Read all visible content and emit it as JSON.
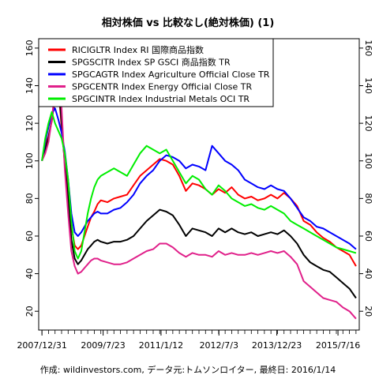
{
  "chart_data": {
    "type": "line",
    "title": "相対株価 vs 比較なし(絶対株価) (1)",
    "caption": "作成: wildinvestors.com, データ元:トムソンロイター, 最終日: 2016/1/14",
    "x_tick_labels": [
      "2007/12/31",
      "2009/7/23",
      "2011/1/12",
      "2012/7/3",
      "2013/12/23",
      "2015/7/16"
    ],
    "x_tick_months": [
      0,
      18.7,
      36.4,
      54.1,
      71.8,
      90.5
    ],
    "x_range_months": [
      -1,
      97
    ],
    "y_ticks": [
      20,
      40,
      60,
      80,
      100,
      120,
      140,
      160
    ],
    "ylim": [
      10,
      165
    ],
    "grid": false,
    "legend_position": "top-left",
    "series": [
      {
        "name": "RICIGLTR Index RI 国際商品指数",
        "color": "#ff0000",
        "x": [
          0,
          1,
          2,
          3,
          4,
          5,
          6,
          7,
          8,
          9,
          10,
          11,
          12,
          13,
          14,
          15,
          16,
          17,
          18,
          20,
          22,
          24,
          26,
          28,
          30,
          32,
          34,
          36,
          38,
          40,
          42,
          44,
          46,
          48,
          50,
          52,
          54,
          56,
          58,
          60,
          62,
          64,
          66,
          68,
          70,
          72,
          74,
          76,
          78,
          80,
          82,
          84,
          86,
          88,
          90,
          92,
          94,
          96
        ],
        "values": [
          100,
          108,
          113,
          121,
          134,
          140,
          118,
          100,
          82,
          65,
          55,
          53,
          55,
          60,
          65,
          70,
          73,
          77,
          79,
          78,
          80,
          81,
          82,
          87,
          92,
          95,
          98,
          101,
          100,
          98,
          92,
          84,
          88,
          87,
          85,
          82,
          85,
          83,
          86,
          82,
          80,
          81,
          79,
          80,
          82,
          80,
          83,
          80,
          76,
          68,
          66,
          62,
          59,
          57,
          54,
          52,
          50,
          44
        ]
      },
      {
        "name": "SPGSCITR Index SP GSCI 商品指数 TR",
        "color": "#000000",
        "x": [
          0,
          1,
          2,
          3,
          4,
          5,
          6,
          7,
          8,
          9,
          10,
          11,
          12,
          13,
          14,
          15,
          16,
          17,
          18,
          20,
          22,
          24,
          26,
          28,
          30,
          32,
          34,
          36,
          38,
          40,
          42,
          44,
          46,
          48,
          50,
          52,
          54,
          56,
          58,
          60,
          62,
          64,
          66,
          68,
          70,
          72,
          74,
          76,
          78,
          80,
          82,
          84,
          86,
          88,
          90,
          92,
          94,
          96
        ],
        "values": [
          100,
          106,
          112,
          122,
          135,
          142,
          120,
          98,
          80,
          58,
          48,
          45,
          47,
          50,
          53,
          55,
          57,
          58,
          57,
          56,
          57,
          57,
          58,
          60,
          64,
          68,
          71,
          74,
          73,
          71,
          66,
          60,
          64,
          63,
          62,
          60,
          64,
          62,
          64,
          62,
          61,
          62,
          60,
          61,
          62,
          61,
          63,
          60,
          56,
          50,
          46,
          44,
          42,
          41,
          38,
          35,
          32,
          27
        ]
      },
      {
        "name": "SPGCAGTR Index Agriculture Official Close TR",
        "color": "#0000ff",
        "x": [
          0,
          1,
          2,
          3,
          4,
          5,
          6,
          7,
          8,
          9,
          10,
          11,
          12,
          13,
          14,
          15,
          16,
          17,
          18,
          20,
          22,
          24,
          26,
          28,
          30,
          32,
          34,
          36,
          38,
          40,
          42,
          44,
          46,
          48,
          50,
          52,
          54,
          56,
          58,
          60,
          62,
          64,
          66,
          68,
          70,
          72,
          74,
          76,
          78,
          80,
          82,
          84,
          86,
          88,
          90,
          92,
          94,
          96
        ],
        "values": [
          100,
          110,
          118,
          125,
          128,
          122,
          115,
          105,
          90,
          72,
          62,
          60,
          62,
          65,
          68,
          70,
          72,
          73,
          72,
          72,
          74,
          75,
          78,
          82,
          88,
          92,
          95,
          100,
          103,
          102,
          100,
          96,
          98,
          97,
          95,
          108,
          104,
          100,
          98,
          95,
          90,
          88,
          86,
          85,
          87,
          85,
          84,
          80,
          75,
          70,
          68,
          65,
          64,
          62,
          60,
          58,
          56,
          53
        ]
      },
      {
        "name": "SPGCENTR Index Energy Official Close TR",
        "color": "#e0208a",
        "x": [
          0,
          1,
          2,
          3,
          4,
          5,
          6,
          7,
          8,
          9,
          10,
          11,
          12,
          13,
          14,
          15,
          16,
          17,
          18,
          20,
          22,
          24,
          26,
          28,
          30,
          32,
          34,
          36,
          38,
          40,
          42,
          44,
          46,
          48,
          50,
          52,
          54,
          56,
          58,
          60,
          62,
          64,
          66,
          68,
          70,
          72,
          74,
          76,
          78,
          80,
          82,
          84,
          86,
          88,
          90,
          92,
          94,
          96
        ],
        "values": [
          100,
          104,
          110,
          122,
          138,
          156,
          128,
          95,
          72,
          52,
          44,
          40,
          41,
          43,
          45,
          47,
          48,
          48,
          47,
          46,
          45,
          45,
          46,
          48,
          50,
          52,
          53,
          56,
          56,
          54,
          51,
          49,
          51,
          50,
          50,
          49,
          52,
          50,
          51,
          50,
          50,
          51,
          50,
          51,
          52,
          51,
          52,
          49,
          45,
          36,
          33,
          30,
          27,
          26,
          25,
          22,
          20,
          16
        ]
      },
      {
        "name": "SPGCINTR Index Industrial Metals OCI TR",
        "color": "#00ee00",
        "x": [
          0,
          1,
          2,
          3,
          4,
          5,
          6,
          7,
          8,
          9,
          10,
          11,
          12,
          13,
          14,
          15,
          16,
          17,
          18,
          20,
          22,
          24,
          26,
          28,
          30,
          32,
          34,
          36,
          38,
          40,
          42,
          44,
          46,
          48,
          50,
          52,
          54,
          56,
          58,
          60,
          62,
          64,
          66,
          68,
          70,
          72,
          74,
          76,
          78,
          80,
          82,
          84,
          86,
          88,
          90,
          92,
          94,
          96
        ],
        "values": [
          100,
          112,
          120,
          126,
          120,
          116,
          112,
          104,
          90,
          68,
          52,
          48,
          52,
          62,
          72,
          80,
          86,
          90,
          92,
          94,
          96,
          94,
          92,
          98,
          104,
          108,
          106,
          104,
          106,
          100,
          94,
          88,
          92,
          90,
          85,
          82,
          87,
          84,
          80,
          78,
          76,
          77,
          75,
          74,
          76,
          74,
          72,
          68,
          66,
          64,
          62,
          60,
          58,
          56,
          54,
          53,
          52,
          51
        ]
      }
    ]
  }
}
